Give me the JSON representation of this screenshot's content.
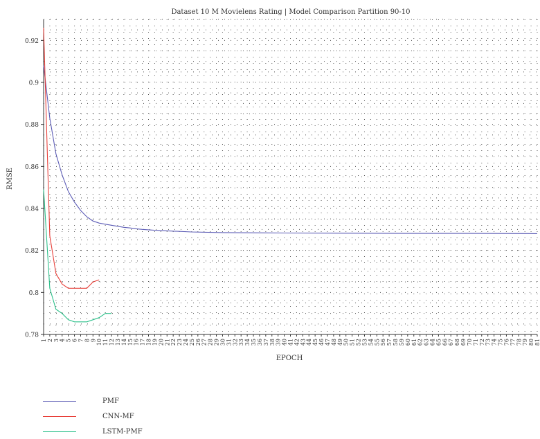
{
  "chart_data": {
    "type": "line",
    "title": "Dataset 10 M Movielens Rating | Model Comparison Partition 90-10",
    "xlabel": "EPOCH",
    "ylabel": "RMSE",
    "ylim": [
      0.78,
      0.93
    ],
    "xlim": [
      1,
      81
    ],
    "yticks": [
      0.78,
      0.8,
      0.82,
      0.84,
      0.86,
      0.88,
      0.9,
      0.92
    ],
    "x_categories": [
      "1",
      "2",
      "3",
      "4",
      "5",
      "6",
      "7",
      "8",
      "9",
      "10",
      "11",
      "12",
      "13",
      "14",
      "15",
      "16",
      "17",
      "18",
      "19",
      "20",
      "21",
      "22",
      "23",
      "24",
      "25",
      "26",
      "27",
      "28",
      "29",
      "30",
      "31",
      "32",
      "33",
      "34",
      "35",
      "36",
      "37",
      "38",
      "39",
      "40",
      "41",
      "42",
      "43",
      "44",
      "45",
      "46",
      "47",
      "48",
      "49",
      "50",
      "51",
      "52",
      "53",
      "54",
      "55",
      "56",
      "57",
      "58",
      "59",
      "60",
      "61",
      "62",
      "63",
      "64",
      "65",
      "66",
      "67",
      "68",
      "69",
      "70",
      "71",
      "72",
      "73",
      "74",
      "75",
      "76",
      "77",
      "78",
      "79",
      "80",
      "81"
    ],
    "grid": true,
    "legend_position": "bottom-left",
    "series": [
      {
        "name": "PMF",
        "color": "#5b5bb5",
        "x": [
          1,
          2,
          3,
          4,
          5,
          6,
          7,
          8,
          9,
          10,
          11,
          12,
          13,
          14,
          15,
          16,
          17,
          18,
          19,
          20,
          22,
          25,
          30,
          40,
          50,
          60,
          70,
          81
        ],
        "y": [
          0.908,
          0.883,
          0.866,
          0.856,
          0.848,
          0.843,
          0.839,
          0.836,
          0.834,
          0.833,
          0.8325,
          0.832,
          0.8315,
          0.831,
          0.8307,
          0.8303,
          0.83,
          0.8298,
          0.8296,
          0.8295,
          0.8292,
          0.8288,
          0.8285,
          0.8283,
          0.8282,
          0.8281,
          0.8281,
          0.828
        ]
      },
      {
        "name": "CNN-MF",
        "color": "#e8403a",
        "x": [
          1,
          2,
          3,
          4,
          5,
          6,
          7,
          8,
          9,
          10
        ],
        "y": [
          0.926,
          0.827,
          0.809,
          0.804,
          0.802,
          0.802,
          0.802,
          0.802,
          0.805,
          0.806
        ]
      },
      {
        "name": "LSTM-PMF",
        "color": "#2cc08a",
        "x": [
          1,
          2,
          3,
          4,
          5,
          6,
          7,
          8,
          9,
          10,
          11,
          12
        ],
        "y": [
          0.849,
          0.802,
          0.792,
          0.79,
          0.787,
          0.786,
          0.786,
          0.786,
          0.787,
          0.788,
          0.79,
          0.79
        ]
      }
    ]
  }
}
